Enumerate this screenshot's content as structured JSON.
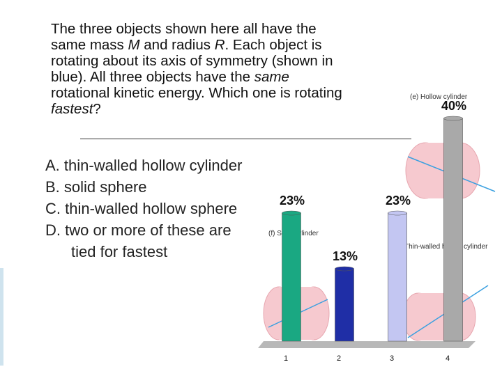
{
  "question_lines": [
    [
      "The three objects shown here all have the"
    ],
    [
      "same mass ",
      "M",
      " and radius ",
      "R",
      ". Each object is"
    ],
    [
      "rotating about its axis of symmetry (shown in"
    ],
    [
      "blue). All three objects have the ",
      "same"
    ],
    [
      "rotational kinetic energy. Which one is rotating"
    ],
    [
      "",
      "fastest",
      "?"
    ]
  ],
  "options": [
    "A. thin-walled hollow cylinder",
    "B. solid sphere",
    "C. thin-walled hollow sphere",
    "D. two or more of these are tied for fastest"
  ],
  "figure_labels": [
    "(e) Hollow cylinder",
    "(f) Solid cylinder",
    "Thin-walled hollow cylinder"
  ],
  "chart_data": {
    "type": "bar",
    "categories": [
      "1",
      "2",
      "3",
      "4"
    ],
    "values": [
      23,
      13,
      23,
      40
    ],
    "value_labels": [
      "23%",
      "13%",
      "23%",
      "40%"
    ],
    "colors": [
      "#1aa882",
      "#1f2ea6",
      "#c3c6f2",
      "#a9a9a9"
    ]
  }
}
